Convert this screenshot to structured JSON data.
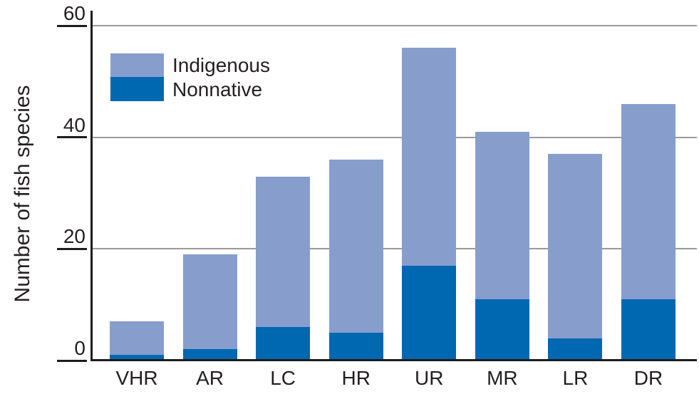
{
  "chart_data": {
    "type": "bar",
    "stacked": true,
    "title": "",
    "xlabel": "",
    "ylabel": "Number of fish species",
    "ylim": [
      0,
      60
    ],
    "yticks": [
      0,
      20,
      40,
      60
    ],
    "grid": true,
    "legend_position": "top-left",
    "categories": [
      "VHR",
      "AR",
      "LC",
      "HR",
      "UR",
      "MR",
      "LR",
      "DR"
    ],
    "series": [
      {
        "name": "Indigenous",
        "color": "#879ECD",
        "values": [
          6,
          17,
          27,
          31,
          39,
          30,
          33,
          35
        ]
      },
      {
        "name": "Nonnative",
        "color": "#0067B1",
        "values": [
          1,
          2,
          6,
          5,
          17,
          11,
          4,
          11
        ]
      }
    ],
    "stack_order_bottom_to_top": [
      "Nonnative",
      "Indigenous"
    ],
    "stack_totals": [
      7,
      19,
      33,
      36,
      56,
      41,
      37,
      46
    ],
    "colors": {
      "grid": "#9a9a9a",
      "axis": "#1c1c1c",
      "text": "#231f20",
      "background": "#ffffff"
    }
  }
}
